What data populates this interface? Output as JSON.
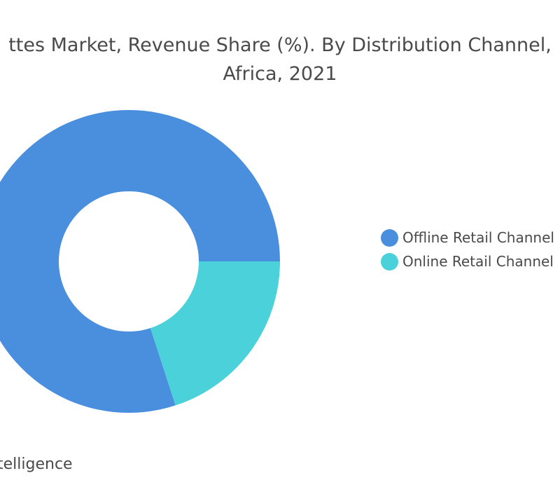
{
  "chart_data": {
    "type": "pie",
    "style": "donut",
    "title_lines": [
      "ttes Market, Revenue Share (%). By Distribution Channel,",
      "Africa, 2021"
    ],
    "categories": [
      "Offline Retail Channel",
      "Online Retail Channel"
    ],
    "values": [
      80,
      20
    ],
    "unit": "%",
    "colors": [
      "#4a8fde",
      "#4ad1d9"
    ],
    "legend_position": "right"
  },
  "source": "telligence"
}
